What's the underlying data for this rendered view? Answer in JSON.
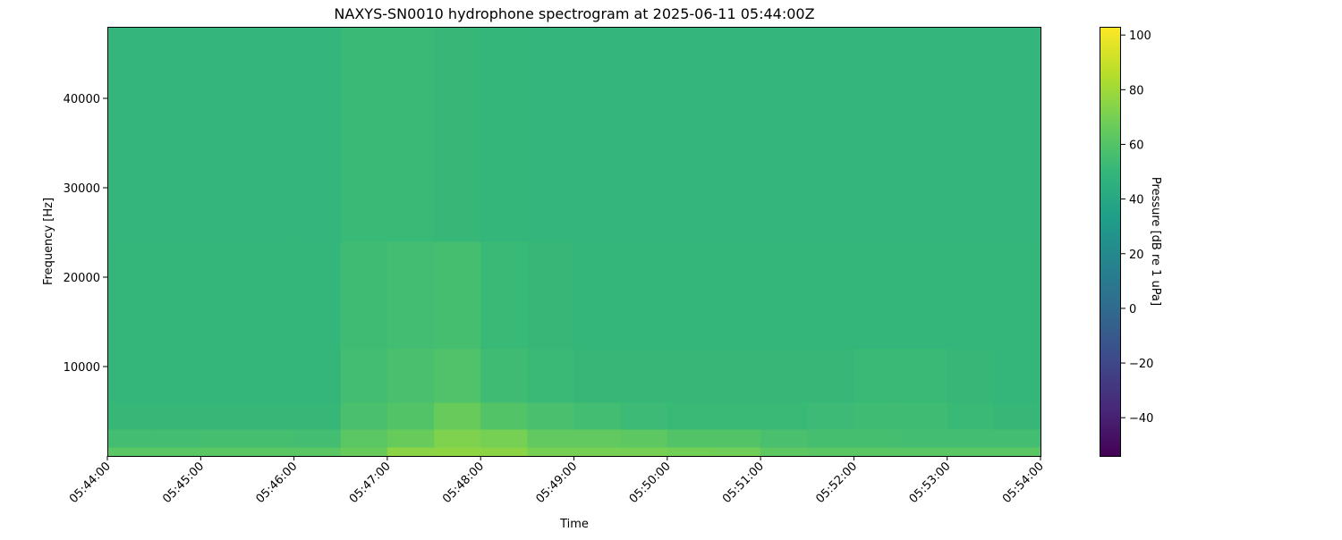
{
  "chart_data": {
    "type": "heatmap",
    "title": "NAXYS-SN0010 hydrophone spectrogram at 2025-06-11 05:44:00Z",
    "xlabel": "Time",
    "ylabel": "Frequency [Hz]",
    "colorbar_label": "Pressure [dB re 1 uPa]",
    "colormap": "viridis",
    "xlim": [
      "05:44:00",
      "05:54:00"
    ],
    "ylim": [
      0,
      48000
    ],
    "zlim": [
      -54,
      103
    ],
    "x_ticks": [
      "05:44:00",
      "05:45:00",
      "05:46:00",
      "05:47:00",
      "05:48:00",
      "05:49:00",
      "05:50:00",
      "05:51:00",
      "05:52:00",
      "05:53:00",
      "05:54:00"
    ],
    "y_ticks": [
      10000,
      20000,
      30000,
      40000
    ],
    "colorbar_ticks": [
      -40,
      -20,
      0,
      20,
      40,
      60,
      80,
      100
    ],
    "time_bin_seconds": 30,
    "freq_bin_edges_hz": [
      0,
      1000,
      3000,
      6000,
      12000,
      24000,
      48000
    ],
    "values_db": [
      [
        62,
        62,
        62,
        62,
        62,
        66,
        75,
        76,
        75,
        70,
        70,
        70,
        69,
        68,
        63,
        62,
        62,
        62,
        62,
        62
      ],
      [
        55,
        55,
        56,
        56,
        55,
        62,
        66,
        72,
        70,
        64,
        64,
        63,
        60,
        60,
        57,
        56,
        56,
        55,
        55,
        55
      ],
      [
        51,
        51,
        51,
        51,
        51,
        57,
        60,
        66,
        60,
        57,
        55,
        53,
        52,
        52,
        52,
        53,
        54,
        54,
        52,
        51
      ],
      [
        50,
        50,
        50,
        50,
        50,
        55,
        57,
        59,
        54,
        52,
        51,
        51,
        51,
        51,
        51,
        51,
        52,
        52,
        51,
        50
      ],
      [
        50,
        50,
        50,
        50,
        50,
        54,
        55,
        56,
        52,
        51,
        50,
        50,
        50,
        50,
        50,
        50,
        50,
        50,
        50,
        50
      ],
      [
        49,
        49,
        49,
        49,
        49,
        52,
        52,
        51,
        50,
        49,
        49,
        49,
        49,
        49,
        49,
        49,
        49,
        49,
        49,
        49
      ]
    ]
  }
}
